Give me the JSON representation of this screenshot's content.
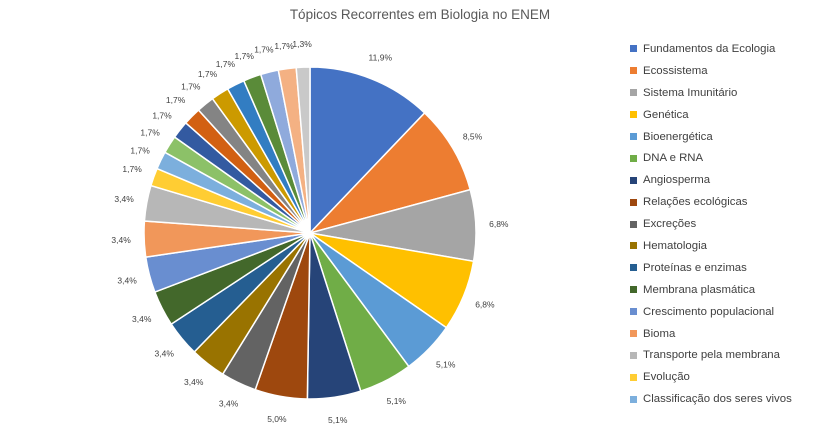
{
  "chart_data": {
    "type": "pie",
    "title": "Tópicos Recorrentes em Biologia no ENEM",
    "legend_position": "right",
    "slices": [
      {
        "label": "Fundamentos da Ecologia",
        "value": 11.9,
        "value_label": "11,9%",
        "color": "#4472C4"
      },
      {
        "label": "Ecossistema",
        "value": 8.5,
        "value_label": "8,5%",
        "color": "#ED7D31"
      },
      {
        "label": "Sistema Imunitário",
        "value": 6.8,
        "value_label": "6,8%",
        "color": "#A5A5A5"
      },
      {
        "label": "Genética",
        "value": 6.8,
        "value_label": "6,8%",
        "color": "#FFC000"
      },
      {
        "label": "Bioenergética",
        "value": 5.1,
        "value_label": "5,1%",
        "color": "#5B9BD5"
      },
      {
        "label": "DNA e RNA",
        "value": 5.1,
        "value_label": "5,1%",
        "color": "#70AD47"
      },
      {
        "label": "Angiosperma",
        "value": 5.1,
        "value_label": "5,1%",
        "color": "#264478"
      },
      {
        "label": "Relações ecológicas",
        "value": 5.0,
        "value_label": "5,0%",
        "color": "#9E480E"
      },
      {
        "label": "Excreções",
        "value": 3.4,
        "value_label": "3,4%",
        "color": "#636363"
      },
      {
        "label": "Hematologia",
        "value": 3.4,
        "value_label": "3,4%",
        "color": "#997300"
      },
      {
        "label": "Proteínas e enzimas",
        "value": 3.4,
        "value_label": "3,4%",
        "color": "#255E91"
      },
      {
        "label": "Membrana plasmática",
        "value": 3.4,
        "value_label": "3,4%",
        "color": "#43682B"
      },
      {
        "label": "Crescimento populacional",
        "value": 3.4,
        "value_label": "3,4%",
        "color": "#698ED0"
      },
      {
        "label": "Bioma",
        "value": 3.4,
        "value_label": "3,4%",
        "color": "#F1975A"
      },
      {
        "label": "Transporte pela membrana",
        "value": 3.4,
        "value_label": "3,4%",
        "color": "#B7B7B7"
      },
      {
        "label": "Evolução",
        "value": 1.7,
        "value_label": "1,7%",
        "color": "#FFCD33"
      },
      {
        "label": "Classificação dos seres vivos",
        "value": 1.7,
        "value_label": "1,7%",
        "color": "#7CAFDD"
      },
      {
        "label": "",
        "value": 1.7,
        "value_label": "1,7%",
        "color": "#8CC168"
      },
      {
        "label": "",
        "value": 1.7,
        "value_label": "1,7%",
        "color": "#335AA1"
      },
      {
        "label": "",
        "value": 1.7,
        "value_label": "1,7%",
        "color": "#D26012"
      },
      {
        "label": "",
        "value": 1.7,
        "value_label": "1,7%",
        "color": "#848484"
      },
      {
        "label": "",
        "value": 1.7,
        "value_label": "1,7%",
        "color": "#CC9A00"
      },
      {
        "label": "",
        "value": 1.7,
        "value_label": "1,7%",
        "color": "#327DC2"
      },
      {
        "label": "",
        "value": 1.7,
        "value_label": "1,7%",
        "color": "#5A8B39"
      },
      {
        "label": "",
        "value": 1.7,
        "value_label": "1,7%",
        "color": "#8FAADC"
      },
      {
        "label": "",
        "value": 1.7,
        "value_label": "1,7%",
        "color": "#F4B183"
      },
      {
        "label": "",
        "value": 1.3,
        "value_label": "1,3%",
        "color": "#C9C9C9"
      }
    ]
  }
}
